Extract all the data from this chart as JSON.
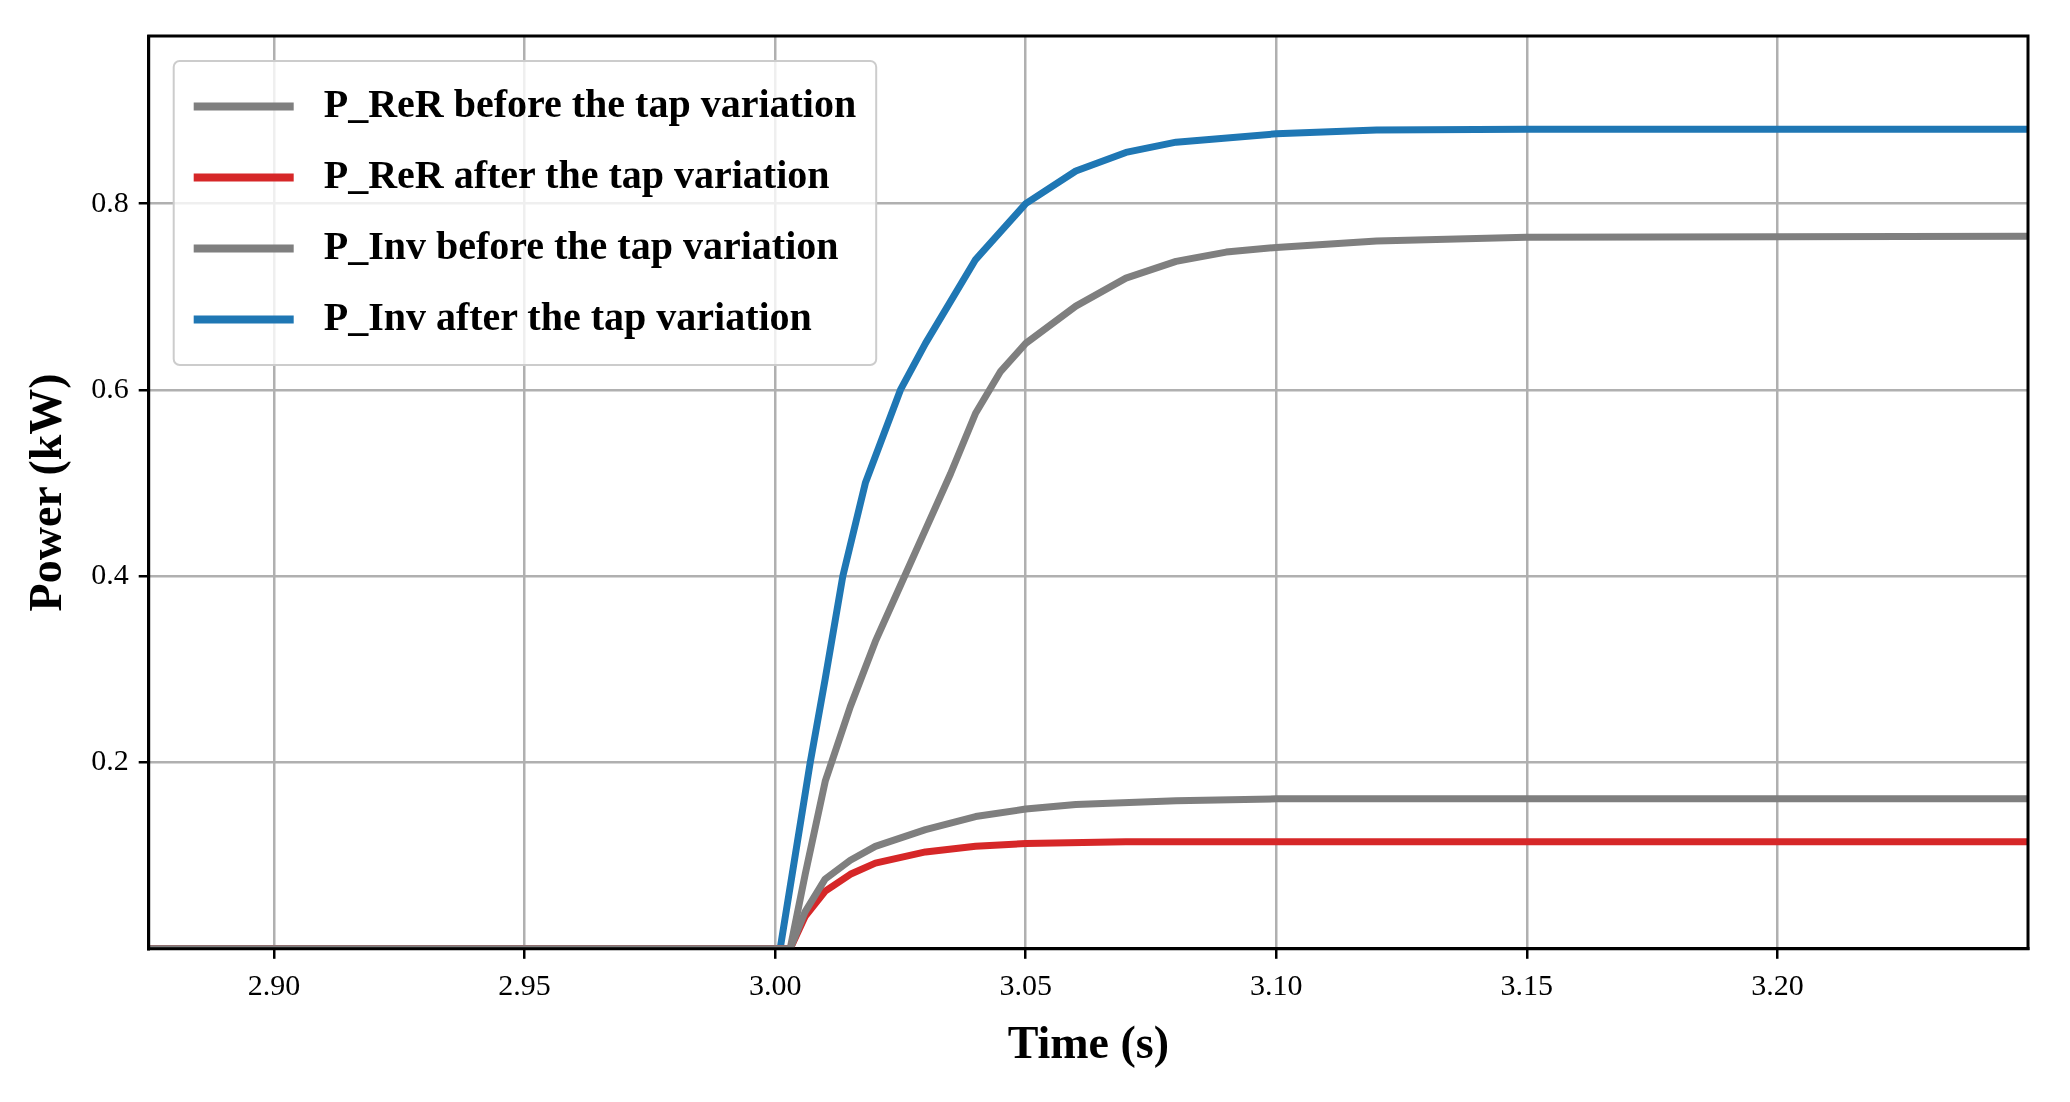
{
  "chart_data": {
    "type": "line",
    "xlabel": "Time (s)",
    "ylabel": "Power (kW)",
    "xlim": [
      2.875,
      3.25
    ],
    "ylim": [
      0,
      0.98
    ],
    "xticks": [
      {
        "value": 2.9,
        "label": "2.90"
      },
      {
        "value": 2.95,
        "label": "2.95"
      },
      {
        "value": 3.0,
        "label": "3.00"
      },
      {
        "value": 3.05,
        "label": "3.05"
      },
      {
        "value": 3.1,
        "label": "3.10"
      },
      {
        "value": 3.15,
        "label": "3.15"
      },
      {
        "value": 3.2,
        "label": "3.20"
      }
    ],
    "yticks": [
      0.2,
      0.4,
      0.6,
      0.8
    ],
    "grid": true,
    "legend": "top left",
    "marker": "none",
    "line_style": "solid",
    "series": [
      {
        "name": "P_ReR before the tap variation",
        "color": "#7f7f7f",
        "x": [
          2.875,
          3.003,
          3.006,
          3.01,
          3.015,
          3.02,
          3.03,
          3.04,
          3.05,
          3.06,
          3.08,
          3.1,
          3.25
        ],
        "values": [
          0,
          0,
          0.04,
          0.075,
          0.095,
          0.11,
          0.128,
          0.142,
          0.15,
          0.155,
          0.159,
          0.161,
          0.161
        ]
      },
      {
        "name": "P_ReR after the tap variation",
        "color": "#d62728",
        "x": [
          2.875,
          3.003,
          3.006,
          3.01,
          3.015,
          3.02,
          3.03,
          3.04,
          3.05,
          3.07,
          3.25
        ],
        "values": [
          0,
          0,
          0.035,
          0.062,
          0.08,
          0.092,
          0.104,
          0.11,
          0.113,
          0.115,
          0.115
        ]
      },
      {
        "name": "P_Inv before the tap variation",
        "color": "#7f7f7f",
        "x": [
          2.875,
          3.003,
          3.006,
          3.01,
          3.015,
          3.02,
          3.025,
          3.03,
          3.035,
          3.04,
          3.045,
          3.05,
          3.06,
          3.07,
          3.08,
          3.09,
          3.1,
          3.12,
          3.15,
          3.25
        ],
        "values": [
          0,
          0,
          0.08,
          0.18,
          0.26,
          0.33,
          0.39,
          0.45,
          0.51,
          0.575,
          0.62,
          0.65,
          0.69,
          0.72,
          0.738,
          0.748,
          0.753,
          0.76,
          0.764,
          0.765
        ]
      },
      {
        "name": "P_Inv after the tap variation",
        "color": "#1f77b4",
        "x": [
          2.875,
          3.001,
          3.004,
          3.007,
          3.01,
          3.0135,
          3.018,
          3.025,
          3.03,
          3.04,
          3.05,
          3.06,
          3.07,
          3.08,
          3.1,
          3.12,
          3.15,
          3.25
        ],
        "values": [
          0,
          0,
          0.1,
          0.2,
          0.29,
          0.4,
          0.5,
          0.6,
          0.65,
          0.74,
          0.8,
          0.835,
          0.855,
          0.866,
          0.875,
          0.879,
          0.88,
          0.88
        ]
      }
    ]
  }
}
